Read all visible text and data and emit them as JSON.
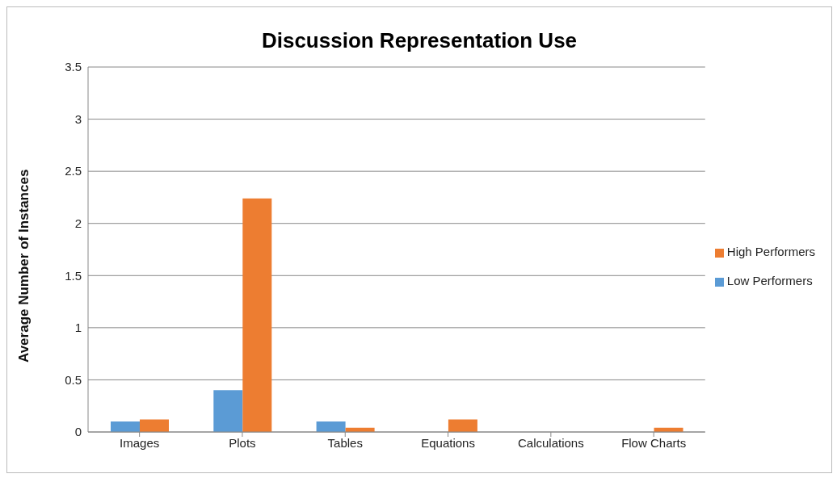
{
  "chart_data": {
    "type": "bar",
    "title": "Discussion Representation Use",
    "ylabel": "Average Number of Instances",
    "categories": [
      "Images",
      "Plots",
      "Tables",
      "Equations",
      "Calculations",
      "Flow Charts"
    ],
    "series": [
      {
        "name": "Low Performers",
        "color": "#5b9bd5",
        "values": [
          0.1,
          0.4,
          0.1,
          0,
          0,
          0
        ]
      },
      {
        "name": "High Performers",
        "color": "#ed7d31",
        "values": [
          0.12,
          2.24,
          0.04,
          0.12,
          0,
          0.04
        ]
      }
    ],
    "ylim": [
      0,
      3.5
    ],
    "yticks": [
      0,
      0.5,
      1,
      1.5,
      2,
      2.5,
      3,
      3.5
    ],
    "grid": "y",
    "legend": "right"
  }
}
